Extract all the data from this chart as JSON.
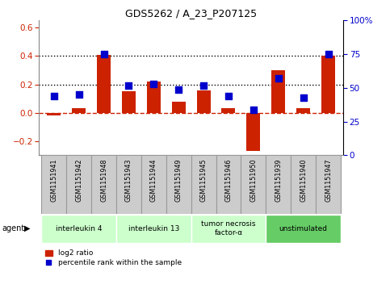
{
  "title": "GDS5262 / A_23_P207125",
  "samples": [
    "GSM1151941",
    "GSM1151942",
    "GSM1151948",
    "GSM1151943",
    "GSM1151944",
    "GSM1151949",
    "GSM1151945",
    "GSM1151946",
    "GSM1151950",
    "GSM1151939",
    "GSM1151940",
    "GSM1151947"
  ],
  "log2_ratio": [
    -0.02,
    0.03,
    0.41,
    0.15,
    0.22,
    0.08,
    0.16,
    0.03,
    -0.27,
    0.3,
    0.03,
    0.4
  ],
  "percentile_rank": [
    44,
    45,
    75,
    52,
    53,
    49,
    52,
    44,
    34,
    57,
    43,
    75
  ],
  "agents": [
    {
      "label": "interleukin 4",
      "start": 0,
      "end": 3,
      "color": "#ccffcc"
    },
    {
      "label": "interleukin 13",
      "start": 3,
      "end": 6,
      "color": "#ccffcc"
    },
    {
      "label": "tumor necrosis\nfactor-α",
      "start": 6,
      "end": 9,
      "color": "#ccffcc"
    },
    {
      "label": "unstimulated",
      "start": 9,
      "end": 12,
      "color": "#66cc66"
    }
  ],
  "ylim_left": [
    -0.3,
    0.65
  ],
  "ylim_right": [
    0,
    100
  ],
  "yticks_left": [
    -0.2,
    0.0,
    0.2,
    0.4,
    0.6
  ],
  "yticks_right": [
    0,
    25,
    50,
    75,
    100
  ],
  "bar_color": "#cc2200",
  "dot_color": "#0000cc",
  "hline_color": "#cc2200",
  "dotted_line_color": "black",
  "legend_bar_label": "log2 ratio",
  "legend_dot_label": "percentile rank within the sample",
  "agent_label": "agent",
  "bar_width": 0.55,
  "dot_size": 30,
  "ylabel_left_color": "#cc2200",
  "ylabel_right_color": "#0000cc",
  "sample_box_color": "#cccccc",
  "sample_box_edge": "#999999"
}
